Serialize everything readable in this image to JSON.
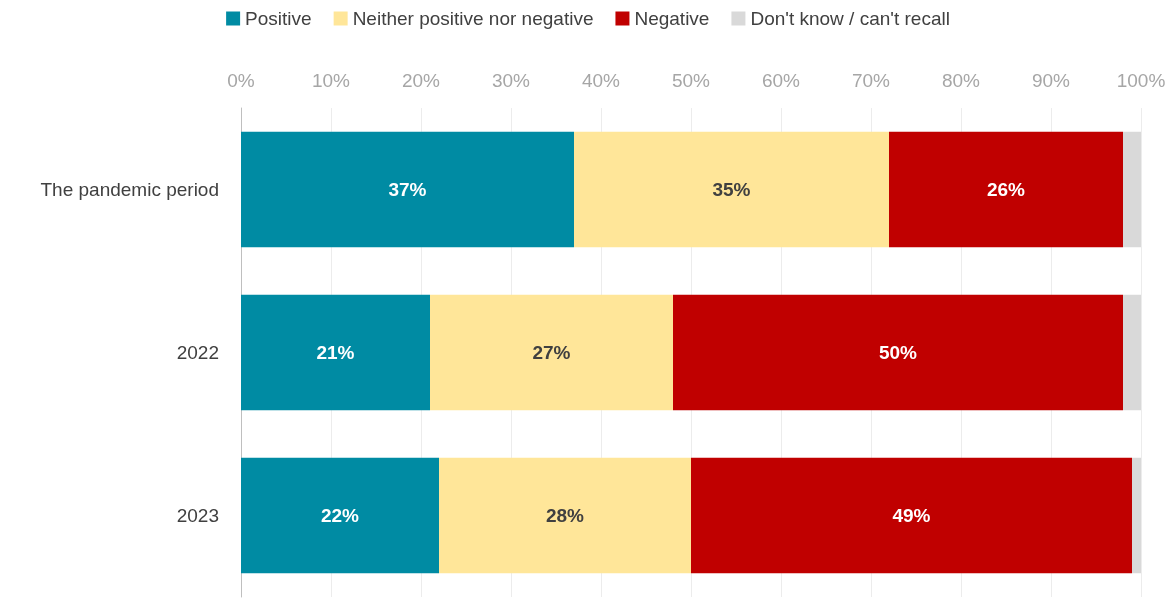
{
  "chart_data": {
    "type": "bar",
    "orientation": "horizontal",
    "stacked": true,
    "categories": [
      "The pandemic period",
      "2022",
      "2023"
    ],
    "series": [
      {
        "name": "Positive",
        "color": "#008ba3",
        "values": [
          37,
          21,
          22
        ],
        "value_labels": [
          "37%",
          "21%",
          "22%"
        ]
      },
      {
        "name": "Neither positive nor negative",
        "color": "#ffe699",
        "values": [
          35,
          27,
          28
        ],
        "value_labels": [
          "35%",
          "27%",
          "28%"
        ]
      },
      {
        "name": "Negative",
        "color": "#c00000",
        "values": [
          26,
          50,
          49
        ],
        "value_labels": [
          "26%",
          "50%",
          "49%"
        ]
      },
      {
        "name": "Don't know / can't recall",
        "color": "#d9d9d9",
        "values": [
          2,
          2,
          1
        ],
        "value_labels": [
          null,
          null,
          null
        ]
      }
    ],
    "xlim": [
      0,
      100
    ],
    "xticks": [
      {
        "value": 0,
        "label": "0%"
      },
      {
        "value": 10,
        "label": "10%"
      },
      {
        "value": 20,
        "label": "20%"
      },
      {
        "value": 30,
        "label": "30%"
      },
      {
        "value": 40,
        "label": "40%"
      },
      {
        "value": 50,
        "label": "50%"
      },
      {
        "value": 60,
        "label": "60%"
      },
      {
        "value": 70,
        "label": "70%"
      },
      {
        "value": 80,
        "label": "80%"
      },
      {
        "value": 90,
        "label": "90%"
      },
      {
        "value": 100,
        "label": "100%"
      }
    ],
    "grid": "x",
    "legend": "top"
  }
}
